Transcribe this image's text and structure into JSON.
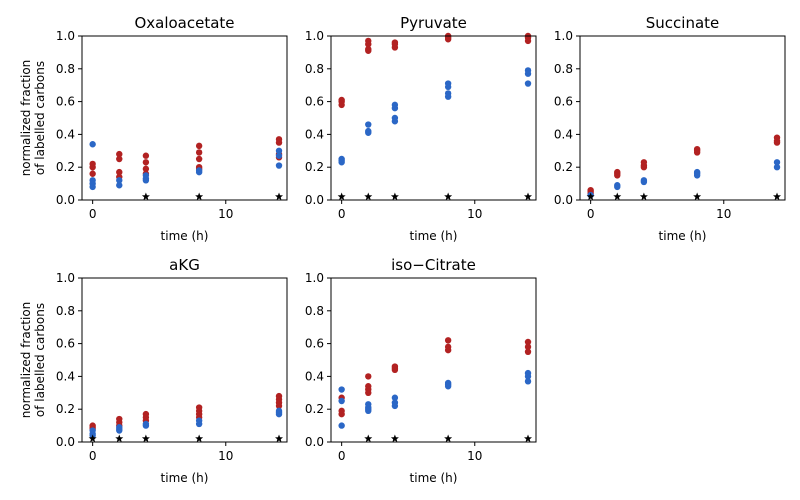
{
  "colors": {
    "series_red": "#b22222",
    "series_blue": "#2b67c6",
    "marker_star": "#000000"
  },
  "chart_data": [
    {
      "type": "scatter",
      "title": "Oxaloacetate",
      "xlabel": "time (h)",
      "ylabel": "normalized fraction\nof labelled carbons",
      "xlim": [
        -0.8,
        14.6
      ],
      "ylim": [
        0,
        1
      ],
      "xticks": [
        0,
        10
      ],
      "yticks": [
        0.0,
        0.2,
        0.4,
        0.6,
        0.8,
        1.0
      ],
      "series": [
        {
          "color": "#b22222",
          "marker": "circle",
          "points": [
            [
              0,
              0.22
            ],
            [
              0,
              0.2
            ],
            [
              0,
              0.16
            ],
            [
              2,
              0.28
            ],
            [
              2,
              0.25
            ],
            [
              2,
              0.17
            ],
            [
              2,
              0.14
            ],
            [
              4,
              0.27
            ],
            [
              4,
              0.23
            ],
            [
              4,
              0.19
            ],
            [
              4,
              0.16
            ],
            [
              8,
              0.33
            ],
            [
              8,
              0.29
            ],
            [
              8,
              0.25
            ],
            [
              8,
              0.2
            ],
            [
              8,
              0.19
            ],
            [
              14,
              0.37
            ],
            [
              14,
              0.35
            ],
            [
              14,
              0.28
            ],
            [
              14,
              0.26
            ]
          ]
        },
        {
          "color": "#2b67c6",
          "marker": "circle",
          "points": [
            [
              0,
              0.34
            ],
            [
              0,
              0.12
            ],
            [
              0,
              0.1
            ],
            [
              0,
              0.08
            ],
            [
              2,
              0.12
            ],
            [
              2,
              0.09
            ],
            [
              4,
              0.15
            ],
            [
              4,
              0.13
            ],
            [
              4,
              0.12
            ],
            [
              8,
              0.18
            ],
            [
              8,
              0.17
            ],
            [
              14,
              0.3
            ],
            [
              14,
              0.27
            ],
            [
              14,
              0.21
            ]
          ]
        },
        {
          "color": "#000000",
          "marker": "star",
          "points": [
            [
              4,
              0.02
            ],
            [
              8,
              0.02
            ],
            [
              14,
              0.02
            ]
          ]
        }
      ]
    },
    {
      "type": "scatter",
      "title": "Pyruvate",
      "xlabel": "time (h)",
      "ylabel": "",
      "xlim": [
        -0.8,
        14.6
      ],
      "ylim": [
        0,
        1
      ],
      "xticks": [
        0,
        10
      ],
      "yticks": [
        0.0,
        0.2,
        0.4,
        0.6,
        0.8,
        1.0
      ],
      "series": [
        {
          "color": "#b22222",
          "marker": "circle",
          "points": [
            [
              0,
              0.61
            ],
            [
              0,
              0.6
            ],
            [
              0,
              0.58
            ],
            [
              2,
              0.97
            ],
            [
              2,
              0.95
            ],
            [
              2,
              0.92
            ],
            [
              2,
              0.91
            ],
            [
              4,
              0.96
            ],
            [
              4,
              0.95
            ],
            [
              4,
              0.93
            ],
            [
              8,
              1.0
            ],
            [
              8,
              0.99
            ],
            [
              8,
              0.98
            ],
            [
              14,
              1.0
            ],
            [
              14,
              0.99
            ],
            [
              14,
              0.97
            ]
          ]
        },
        {
          "color": "#2b67c6",
          "marker": "circle",
          "points": [
            [
              0,
              0.25
            ],
            [
              0,
              0.24
            ],
            [
              0,
              0.23
            ],
            [
              2,
              0.46
            ],
            [
              2,
              0.42
            ],
            [
              2,
              0.41
            ],
            [
              4,
              0.58
            ],
            [
              4,
              0.56
            ],
            [
              4,
              0.5
            ],
            [
              4,
              0.48
            ],
            [
              8,
              0.71
            ],
            [
              8,
              0.69
            ],
            [
              8,
              0.65
            ],
            [
              8,
              0.63
            ],
            [
              14,
              0.79
            ],
            [
              14,
              0.77
            ],
            [
              14,
              0.71
            ]
          ]
        },
        {
          "color": "#000000",
          "marker": "star",
          "points": [
            [
              0,
              0.02
            ],
            [
              2,
              0.02
            ],
            [
              4,
              0.02
            ],
            [
              8,
              0.02
            ],
            [
              14,
              0.02
            ]
          ]
        }
      ]
    },
    {
      "type": "scatter",
      "title": "Succinate",
      "xlabel": "time (h)",
      "ylabel": "",
      "xlim": [
        -0.8,
        14.6
      ],
      "ylim": [
        0,
        1
      ],
      "xticks": [
        0,
        10
      ],
      "yticks": [
        0.0,
        0.2,
        0.4,
        0.6,
        0.8,
        1.0
      ],
      "series": [
        {
          "color": "#b22222",
          "marker": "circle",
          "points": [
            [
              0,
              0.06
            ],
            [
              0,
              0.05
            ],
            [
              0,
              0.04
            ],
            [
              2,
              0.17
            ],
            [
              2,
              0.16
            ],
            [
              2,
              0.15
            ],
            [
              4,
              0.23
            ],
            [
              4,
              0.21
            ],
            [
              4,
              0.2
            ],
            [
              8,
              0.31
            ],
            [
              8,
              0.3
            ],
            [
              8,
              0.29
            ],
            [
              14,
              0.38
            ],
            [
              14,
              0.36
            ],
            [
              14,
              0.35
            ]
          ]
        },
        {
          "color": "#2b67c6",
          "marker": "circle",
          "points": [
            [
              0,
              0.03
            ],
            [
              2,
              0.09
            ],
            [
              2,
              0.08
            ],
            [
              4,
              0.12
            ],
            [
              4,
              0.11
            ],
            [
              8,
              0.17
            ],
            [
              8,
              0.16
            ],
            [
              8,
              0.15
            ],
            [
              14,
              0.23
            ],
            [
              14,
              0.2
            ]
          ]
        },
        {
          "color": "#000000",
          "marker": "star",
          "points": [
            [
              0,
              0.02
            ],
            [
              2,
              0.02
            ],
            [
              4,
              0.02
            ],
            [
              8,
              0.02
            ],
            [
              14,
              0.02
            ]
          ]
        }
      ]
    },
    {
      "type": "scatter",
      "title": "aKG",
      "xlabel": "time (h)",
      "ylabel": "normalized fraction\nof labelled carbons",
      "xlim": [
        -0.8,
        14.6
      ],
      "ylim": [
        0,
        1
      ],
      "xticks": [
        0,
        10
      ],
      "yticks": [
        0.0,
        0.2,
        0.4,
        0.6,
        0.8,
        1.0
      ],
      "series": [
        {
          "color": "#b22222",
          "marker": "circle",
          "points": [
            [
              0,
              0.1
            ],
            [
              0,
              0.09
            ],
            [
              0,
              0.08
            ],
            [
              2,
              0.14
            ],
            [
              2,
              0.12
            ],
            [
              2,
              0.1
            ],
            [
              4,
              0.17
            ],
            [
              4,
              0.15
            ],
            [
              4,
              0.13
            ],
            [
              8,
              0.21
            ],
            [
              8,
              0.19
            ],
            [
              8,
              0.17
            ],
            [
              8,
              0.15
            ],
            [
              14,
              0.28
            ],
            [
              14,
              0.26
            ],
            [
              14,
              0.24
            ],
            [
              14,
              0.22
            ]
          ]
        },
        {
          "color": "#2b67c6",
          "marker": "circle",
          "points": [
            [
              0,
              0.07
            ],
            [
              0,
              0.05
            ],
            [
              0,
              0.04
            ],
            [
              2,
              0.09
            ],
            [
              2,
              0.08
            ],
            [
              2,
              0.07
            ],
            [
              4,
              0.11
            ],
            [
              4,
              0.1
            ],
            [
              8,
              0.13
            ],
            [
              8,
              0.11
            ],
            [
              14,
              0.19
            ],
            [
              14,
              0.18
            ],
            [
              14,
              0.17
            ]
          ]
        },
        {
          "color": "#000000",
          "marker": "star",
          "points": [
            [
              0,
              0.02
            ],
            [
              2,
              0.02
            ],
            [
              4,
              0.02
            ],
            [
              8,
              0.02
            ],
            [
              14,
              0.02
            ]
          ]
        }
      ]
    },
    {
      "type": "scatter",
      "title": "iso−Citrate",
      "xlabel": "time (h)",
      "ylabel": "",
      "xlim": [
        -0.8,
        14.6
      ],
      "ylim": [
        0,
        1
      ],
      "xticks": [
        0,
        10
      ],
      "yticks": [
        0.0,
        0.2,
        0.4,
        0.6,
        0.8,
        1.0
      ],
      "series": [
        {
          "color": "#b22222",
          "marker": "circle",
          "points": [
            [
              0,
              0.27
            ],
            [
              0,
              0.19
            ],
            [
              0,
              0.17
            ],
            [
              2,
              0.4
            ],
            [
              2,
              0.34
            ],
            [
              2,
              0.32
            ],
            [
              2,
              0.3
            ],
            [
              4,
              0.46
            ],
            [
              4,
              0.45
            ],
            [
              4,
              0.44
            ],
            [
              8,
              0.62
            ],
            [
              8,
              0.58
            ],
            [
              8,
              0.56
            ],
            [
              14,
              0.61
            ],
            [
              14,
              0.58
            ],
            [
              14,
              0.55
            ]
          ]
        },
        {
          "color": "#2b67c6",
          "marker": "circle",
          "points": [
            [
              0,
              0.32
            ],
            [
              0,
              0.25
            ],
            [
              0,
              0.1
            ],
            [
              2,
              0.23
            ],
            [
              2,
              0.21
            ],
            [
              2,
              0.2
            ],
            [
              2,
              0.19
            ],
            [
              4,
              0.27
            ],
            [
              4,
              0.24
            ],
            [
              4,
              0.22
            ],
            [
              8,
              0.36
            ],
            [
              8,
              0.35
            ],
            [
              8,
              0.34
            ],
            [
              14,
              0.42
            ],
            [
              14,
              0.4
            ],
            [
              14,
              0.37
            ]
          ]
        },
        {
          "color": "#000000",
          "marker": "star",
          "points": [
            [
              2,
              0.02
            ],
            [
              4,
              0.02
            ],
            [
              8,
              0.02
            ],
            [
              14,
              0.02
            ]
          ]
        }
      ]
    }
  ]
}
